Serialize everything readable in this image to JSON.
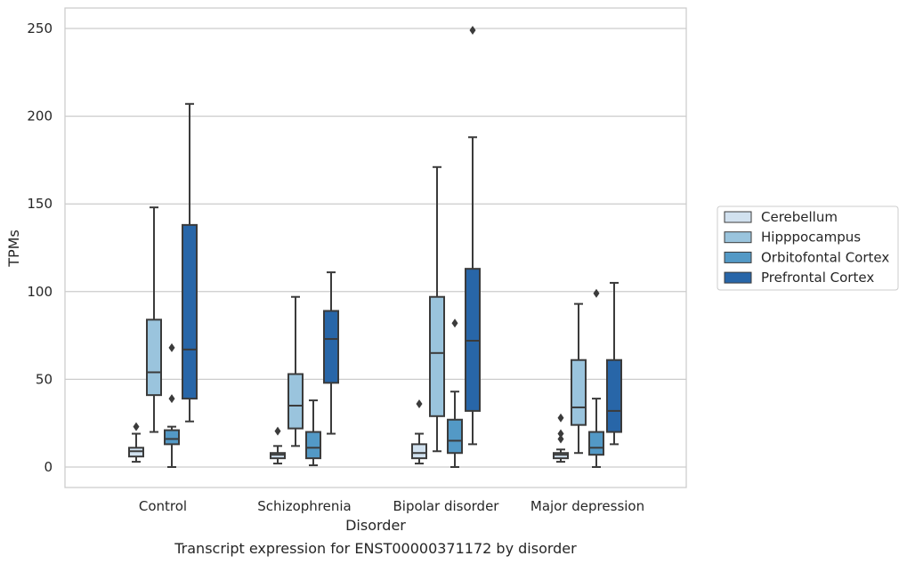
{
  "chart_data": {
    "type": "box",
    "caption": "Transcript expression for ENST00000371172 by disorder",
    "xlabel": "Disorder",
    "ylabel": "TPMs",
    "ylim": [
      -12,
      262
    ],
    "yticks": [
      0,
      50,
      100,
      150,
      200,
      250
    ],
    "grid": true,
    "legend_position": "right",
    "categories": [
      "Control",
      "Schizophrenia",
      "Bipolar disorder",
      "Major depression"
    ],
    "series": [
      {
        "name": "Cerebellum",
        "color": "#d1e1ef",
        "boxes": [
          {
            "whislo": 3,
            "q1": 6,
            "med": 9,
            "q3": 11,
            "whishi": 19,
            "fliers": [
              23
            ]
          },
          {
            "whislo": 2,
            "q1": 5,
            "med": 7,
            "q3": 8,
            "whishi": 12,
            "fliers": [
              20.5
            ]
          },
          {
            "whislo": 2,
            "q1": 5,
            "med": 8,
            "q3": 13,
            "whishi": 19,
            "fliers": [
              36
            ]
          },
          {
            "whislo": 3,
            "q1": 5,
            "med": 7,
            "q3": 8,
            "whishi": 10,
            "fliers": [
              16,
              19,
              28
            ]
          }
        ]
      },
      {
        "name": "Hipppocampus",
        "color": "#9ac4dd",
        "boxes": [
          {
            "whislo": 20,
            "q1": 41,
            "med": 54,
            "q3": 84,
            "whishi": 148,
            "fliers": []
          },
          {
            "whislo": 12,
            "q1": 22,
            "med": 35,
            "q3": 53,
            "whishi": 97,
            "fliers": []
          },
          {
            "whislo": 9,
            "q1": 29,
            "med": 65,
            "q3": 97,
            "whishi": 171,
            "fliers": []
          },
          {
            "whislo": 8,
            "q1": 24,
            "med": 34,
            "q3": 61,
            "whishi": 93,
            "fliers": []
          }
        ]
      },
      {
        "name": "Orbitofontal Cortex",
        "color": "#5399c6",
        "boxes": [
          {
            "whislo": 0,
            "q1": 13,
            "med": 16,
            "q3": 21,
            "whishi": 23,
            "fliers": [
              39,
              68
            ]
          },
          {
            "whislo": 1,
            "q1": 5,
            "med": 11,
            "q3": 20,
            "whishi": 38,
            "fliers": []
          },
          {
            "whislo": 0,
            "q1": 8,
            "med": 15,
            "q3": 27,
            "whishi": 43,
            "fliers": [
              82
            ]
          },
          {
            "whislo": 0,
            "q1": 7,
            "med": 11,
            "q3": 20,
            "whishi": 39,
            "fliers": [
              99
            ]
          }
        ]
      },
      {
        "name": "Prefrontal Cortex",
        "color": "#2866a8",
        "boxes": [
          {
            "whislo": 26,
            "q1": 39,
            "med": 67,
            "q3": 138,
            "whishi": 207,
            "fliers": []
          },
          {
            "whislo": 19,
            "q1": 48,
            "med": 73,
            "q3": 89,
            "whishi": 111,
            "fliers": []
          },
          {
            "whislo": 13,
            "q1": 32,
            "med": 72,
            "q3": 113,
            "whishi": 188,
            "fliers": [
              249
            ]
          },
          {
            "whislo": 13,
            "q1": 20,
            "med": 32,
            "q3": 61,
            "whishi": 105,
            "fliers": []
          }
        ]
      }
    ]
  }
}
